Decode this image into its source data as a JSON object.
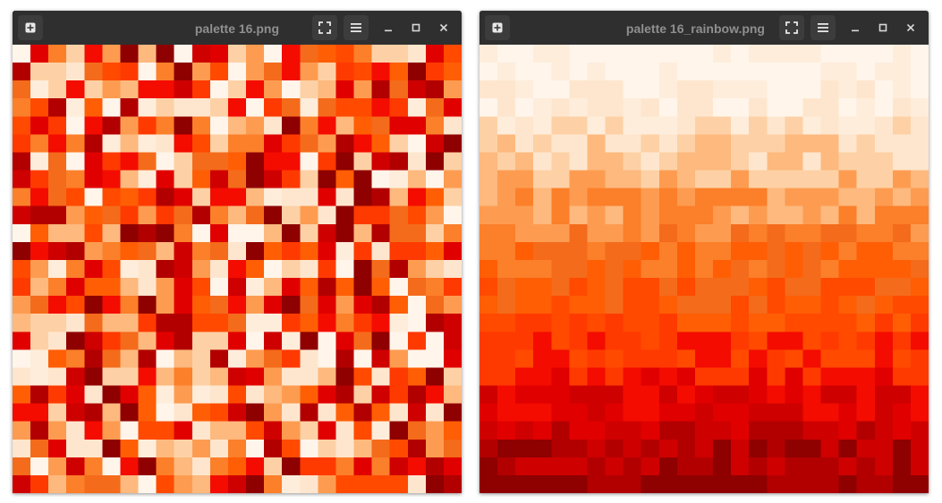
{
  "windows": [
    {
      "id": "win1",
      "title": "palette 16.png",
      "distribution": "random"
    },
    {
      "id": "win2",
      "title": "palette 16_rainbow.png",
      "distribution": "gradient"
    }
  ],
  "icons": {
    "new": "plus-square-icon",
    "fit": "fullscreen-fit-icon",
    "menu": "hamburger-menu-icon",
    "minimize": "minimize-icon",
    "maximize": "maximize-icon",
    "close": "close-icon"
  },
  "palette": {
    "grid": [
      25,
      25
    ],
    "colors": [
      "#fff5eb",
      "#feeddb",
      "#fee6ce",
      "#fdd1a5",
      "#fdb97e",
      "#fd9c51",
      "#fc7f2a",
      "#f46b1b",
      "#ff5e05",
      "#ff4a00",
      "#ff3a00",
      "#f40c00",
      "#e10000",
      "#cf0000",
      "#b20000",
      "#8f0000"
    ]
  }
}
